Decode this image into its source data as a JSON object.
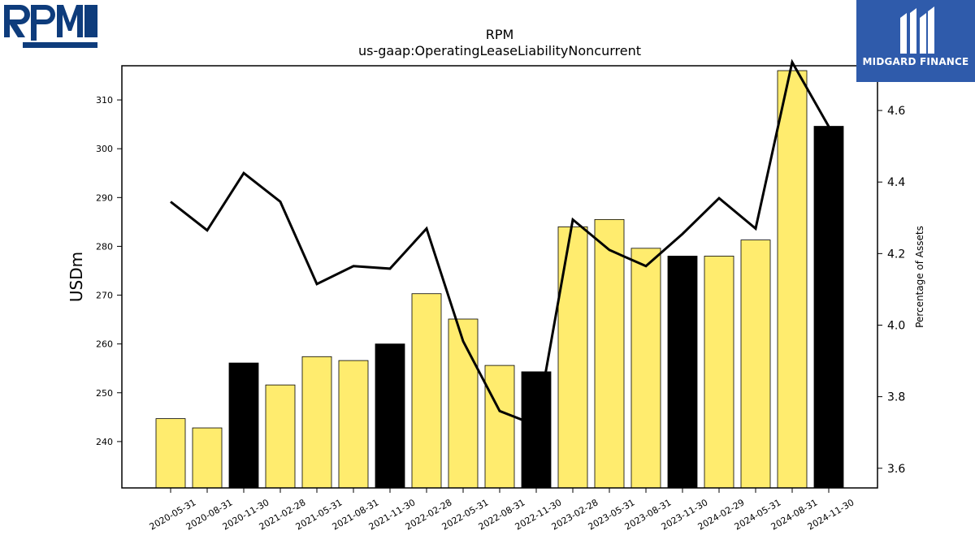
{
  "logos": {
    "left_text": "RPM",
    "right_text": "MIDGARD FINANCE"
  },
  "colors": {
    "bar_yellow": "#ffec6e",
    "bar_black": "#000000",
    "line": "#000000",
    "logo_left_blue": "#0e3c7c",
    "logo_right_bg": "#2f5bab"
  },
  "chart_data": {
    "type": "bar",
    "title": "RPM",
    "subtitle": "us-gaap:OperatingLeaseLiabilityNoncurrent",
    "ylabel": "USDm",
    "y2label": "Percentage of Assets",
    "categories": [
      "2020-05-31",
      "2020-08-31",
      "2020-11-30",
      "2021-02-28",
      "2021-05-31",
      "2021-08-31",
      "2021-11-30",
      "2022-02-28",
      "2022-05-31",
      "2022-08-31",
      "2022-11-30",
      "2023-02-28",
      "2023-05-31",
      "2023-08-31",
      "2023-11-30",
      "2024-02-29",
      "2024-05-31",
      "2024-08-31",
      "2024-11-30"
    ],
    "series": [
      {
        "type": "bar",
        "axis": "left",
        "values": [
          244.7,
          242.8,
          256.1,
          251.6,
          257.4,
          256.6,
          260.0,
          270.3,
          265.1,
          255.6,
          254.3,
          284.0,
          285.5,
          279.6,
          278.0,
          278.0,
          281.3,
          316.0,
          304.6
        ],
        "colors": [
          "yellow",
          "yellow",
          "black",
          "yellow",
          "yellow",
          "yellow",
          "black",
          "yellow",
          "yellow",
          "yellow",
          "black",
          "yellow",
          "yellow",
          "yellow",
          "black",
          "yellow",
          "yellow",
          "yellow",
          "black"
        ]
      },
      {
        "type": "line",
        "axis": "right",
        "values": [
          4.345,
          4.265,
          4.425,
          4.345,
          4.115,
          4.165,
          4.158,
          4.27,
          3.955,
          3.76,
          3.72,
          4.295,
          4.21,
          4.165,
          4.255,
          4.355,
          4.27,
          4.735,
          4.555
        ]
      }
    ],
    "yticks": [
      240,
      250,
      260,
      270,
      280,
      290,
      300,
      310
    ],
    "ylim": [
      230.5,
      317
    ],
    "y2ticks": [
      3.6,
      3.8,
      4.0,
      4.2,
      4.4,
      4.6
    ],
    "y2lim": [
      3.545,
      4.725
    ],
    "grid": false,
    "legend": "none"
  }
}
